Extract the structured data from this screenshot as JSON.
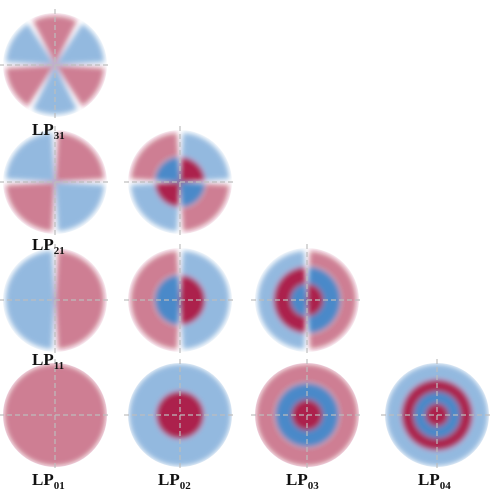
{
  "figure": {
    "palette": {
      "positive": "#a50f3c",
      "negative": "#3b7fc4",
      "axis": "#bdbdbd"
    },
    "modes": [
      {
        "id": "LP31",
        "prefix": "LP",
        "sub": "31",
        "l": 3,
        "radial_order": 1,
        "lobes_orientation": "diagonal"
      },
      {
        "id": "LP21",
        "prefix": "LP",
        "sub": "21",
        "l": 2,
        "radial_order": 1,
        "lobes_orientation": "axis"
      },
      {
        "id": "LP22",
        "prefix": "",
        "sub": "",
        "l": 2,
        "radial_order": 2,
        "lobes_orientation": "axis"
      },
      {
        "id": "LP11",
        "prefix": "LP",
        "sub": "11",
        "l": 1,
        "radial_order": 1,
        "lobes_orientation": "horizontal"
      },
      {
        "id": "LP12",
        "prefix": "",
        "sub": "",
        "l": 1,
        "radial_order": 2,
        "lobes_orientation": "horizontal"
      },
      {
        "id": "LP13",
        "prefix": "",
        "sub": "",
        "l": 1,
        "radial_order": 3,
        "lobes_orientation": "horizontal"
      },
      {
        "id": "LP01",
        "prefix": "LP",
        "sub": "01",
        "l": 0,
        "radial_order": 1,
        "lobes_orientation": "none"
      },
      {
        "id": "LP02",
        "prefix": "LP",
        "sub": "02",
        "l": 0,
        "radial_order": 2,
        "lobes_orientation": "none"
      },
      {
        "id": "LP03",
        "prefix": "LP",
        "sub": "03",
        "l": 0,
        "radial_order": 3,
        "lobes_orientation": "none"
      },
      {
        "id": "LP04",
        "prefix": "LP",
        "sub": "04",
        "l": 0,
        "radial_order": 4,
        "lobes_orientation": "none"
      }
    ]
  }
}
